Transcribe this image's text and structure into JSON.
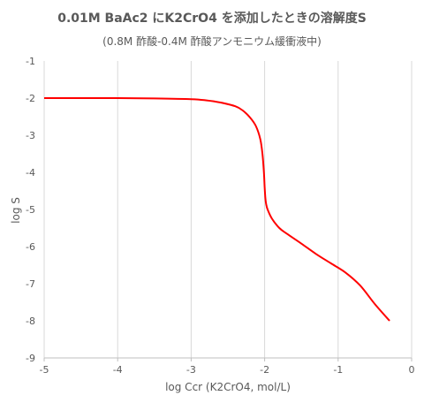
{
  "chart_data": {
    "type": "line",
    "title": "0.01M BaAc2 にK2CrO4 を添加したときの溶解度S",
    "subtitle": "(0.8M 酢酸-0.4M 酢酸アンモニウム緩衝液中)",
    "xlabel": "log Ccr (K2CrO4, mol/L)",
    "ylabel": "log S",
    "xlim": [
      -5,
      0
    ],
    "ylim": [
      -9,
      -1
    ],
    "xticks": [
      -5,
      -4,
      -3,
      -2,
      -1,
      0
    ],
    "yticks": [
      -1,
      -2,
      -3,
      -4,
      -5,
      -6,
      -7,
      -8,
      -9
    ],
    "grid": "vertical",
    "series": [
      {
        "color": "#ff0000",
        "x": [
          -5,
          -4.5,
          -4,
          -3.5,
          -3,
          -2.8,
          -2.6,
          -2.4,
          -2.3,
          -2.2,
          -2.12,
          -2.06,
          -2.03,
          -2.01,
          -2.0,
          -1.99,
          -1.98,
          -1.96,
          -1.9,
          -1.8,
          -1.7,
          -1.5,
          -1.3,
          -1.1,
          -0.9,
          -0.7,
          -0.5,
          -0.3
        ],
        "y": [
          -2.0,
          -2.0,
          -2.0,
          -2.01,
          -2.03,
          -2.06,
          -2.12,
          -2.22,
          -2.33,
          -2.52,
          -2.75,
          -3.1,
          -3.5,
          -4.0,
          -4.4,
          -4.7,
          -4.85,
          -5.0,
          -5.25,
          -5.5,
          -5.65,
          -5.92,
          -6.2,
          -6.45,
          -6.7,
          -7.05,
          -7.55,
          -8.0
        ]
      }
    ]
  }
}
